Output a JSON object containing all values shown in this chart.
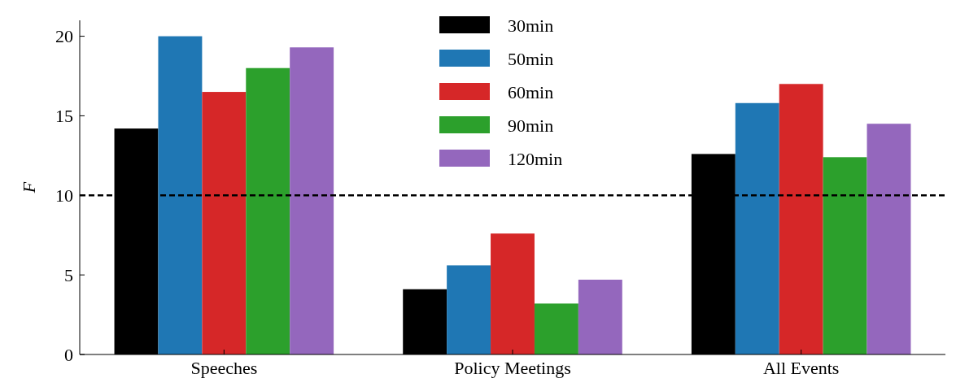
{
  "chart_data": {
    "type": "bar",
    "ylabel": "F",
    "categories": [
      "Speeches",
      "Policy Meetings",
      "All Events"
    ],
    "series": [
      {
        "name": "30min",
        "color": "#000000",
        "values": [
          14.2,
          4.1,
          12.6
        ]
      },
      {
        "name": "50min",
        "color": "#1f77b4",
        "values": [
          20.0,
          5.6,
          15.8
        ]
      },
      {
        "name": "60min",
        "color": "#d62728",
        "values": [
          16.5,
          7.6,
          17.0
        ]
      },
      {
        "name": "90min",
        "color": "#2ca02c",
        "values": [
          18.0,
          3.2,
          12.4
        ]
      },
      {
        "name": "120min",
        "color": "#9467bd",
        "values": [
          19.3,
          4.7,
          14.5
        ]
      }
    ],
    "ylim": [
      0,
      21
    ],
    "yticks": [
      0,
      5,
      10,
      15,
      20
    ],
    "grid": false,
    "legend": "top",
    "ref_lines": [
      {
        "axis": "y",
        "value": 10,
        "color": "#000000",
        "line_style": "dashed"
      }
    ]
  }
}
